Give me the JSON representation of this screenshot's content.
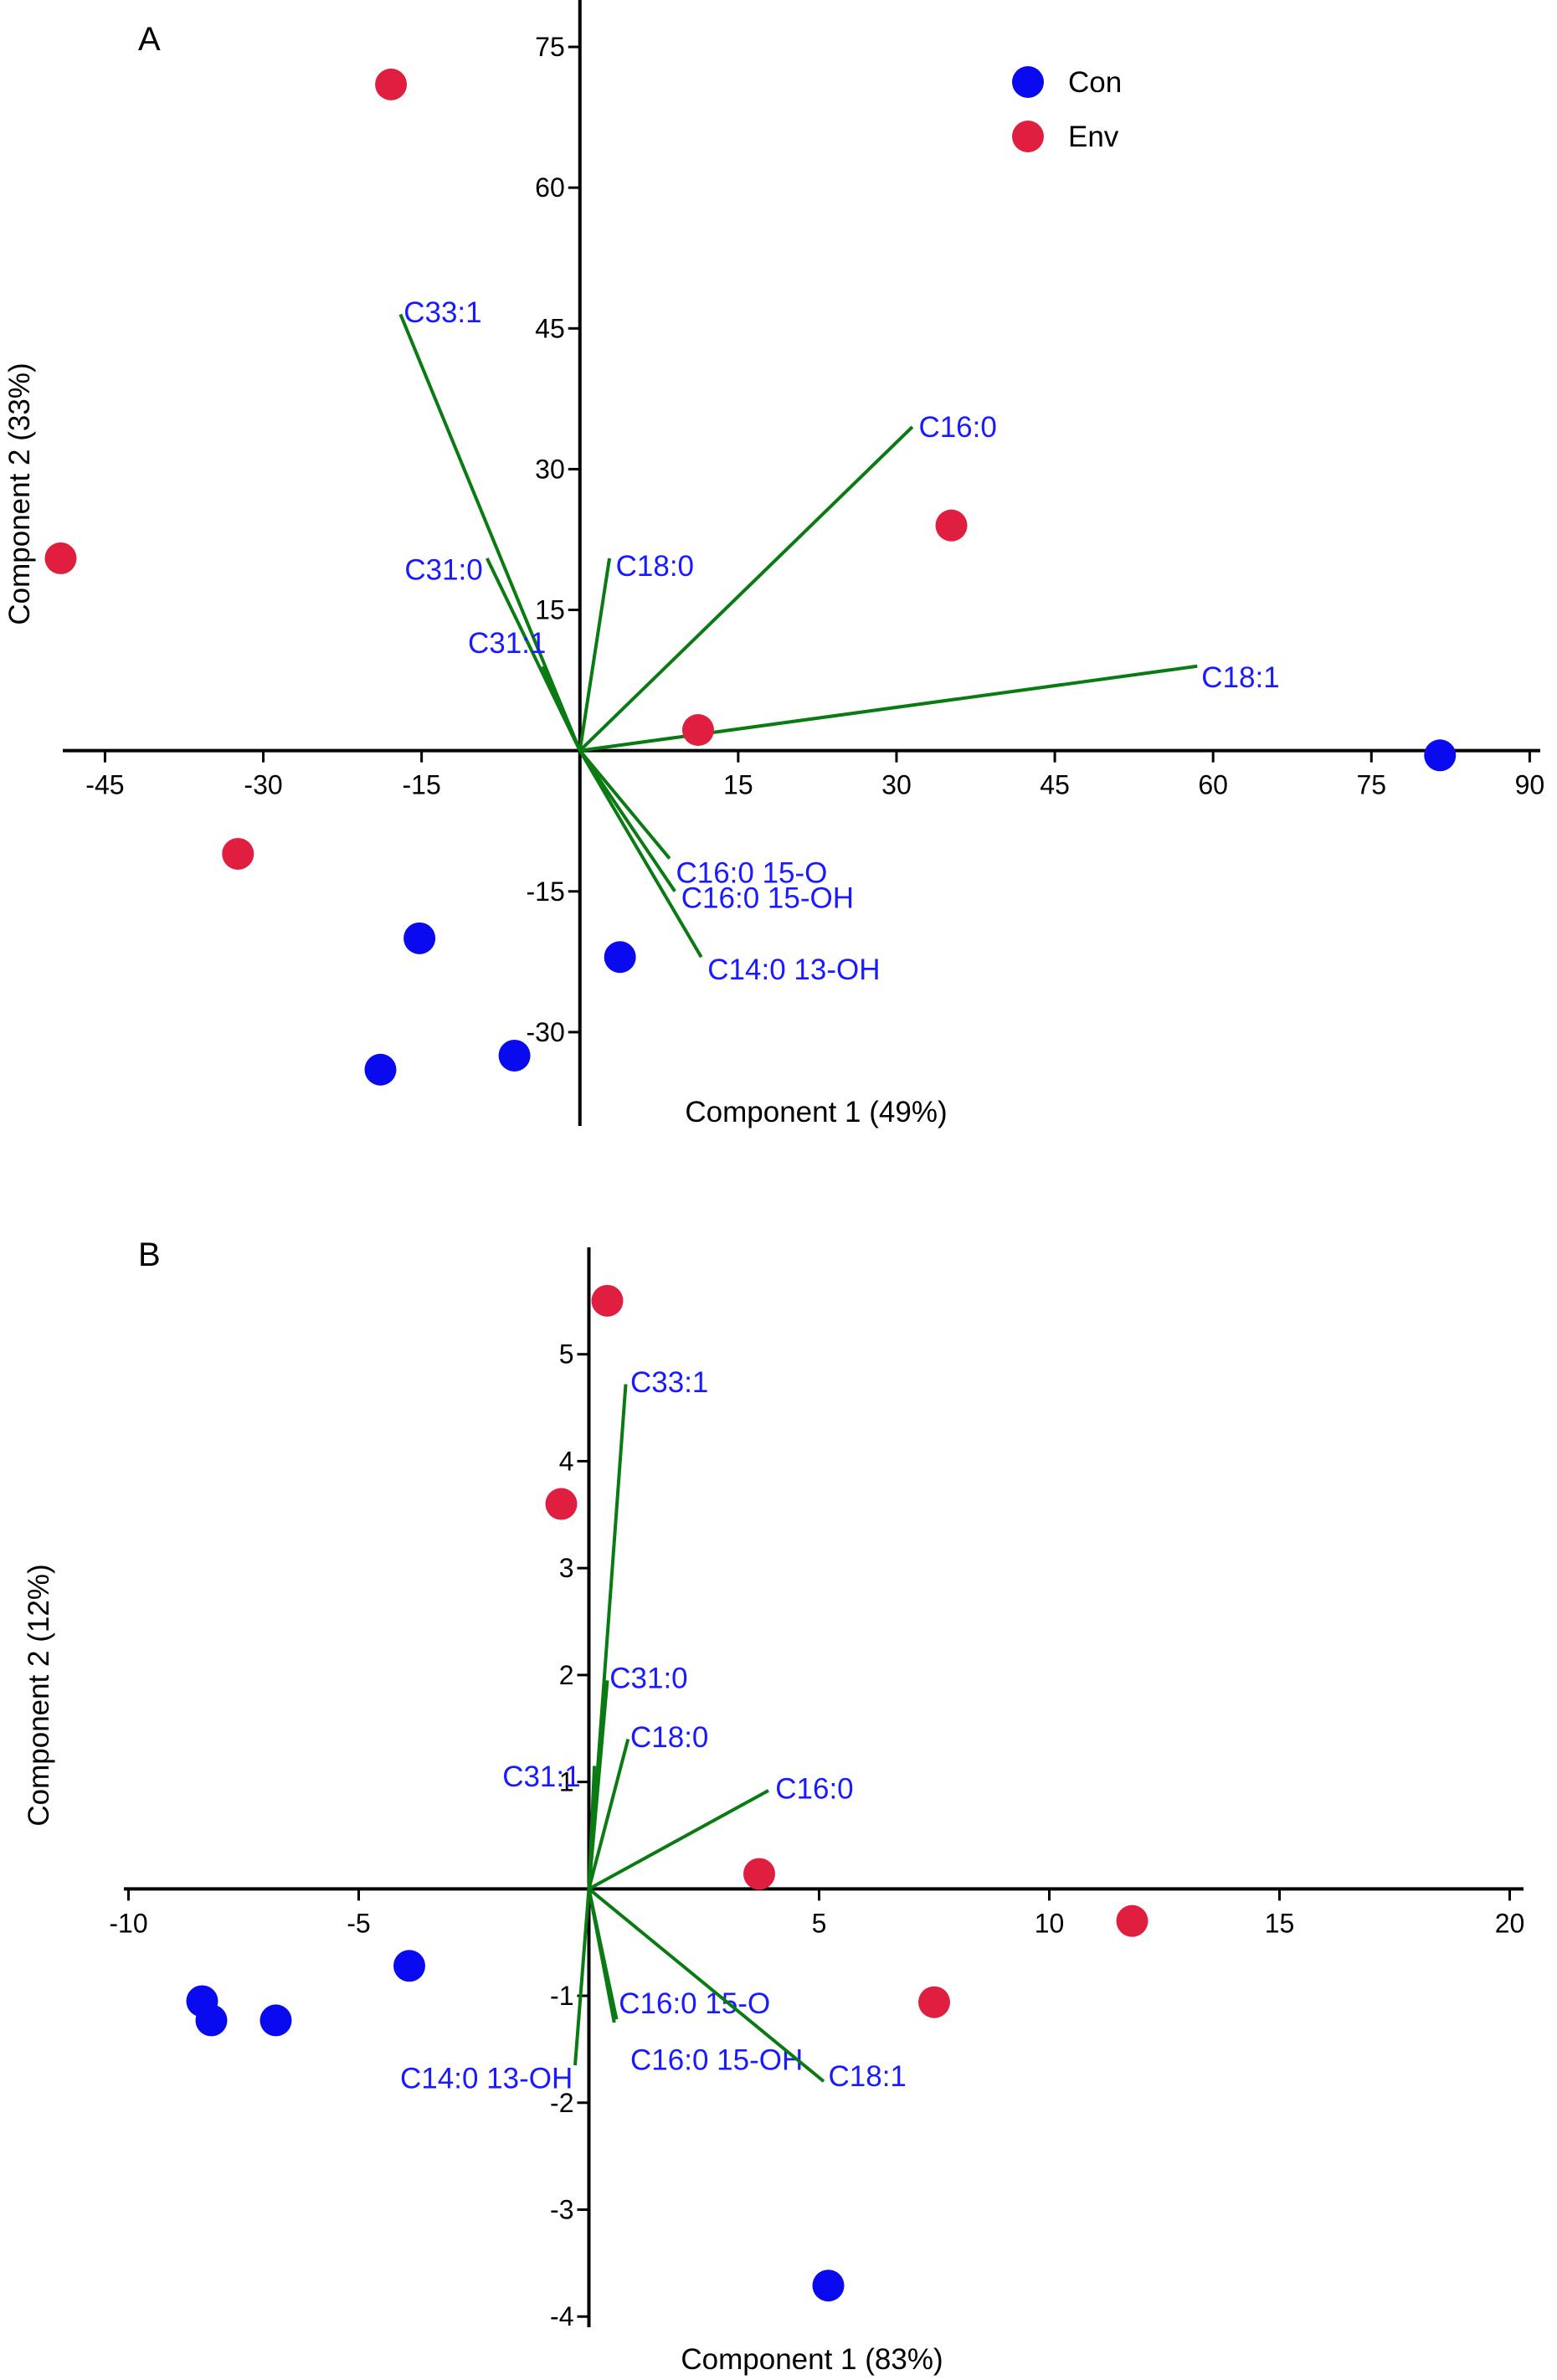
{
  "chart_data": [
    {
      "type": "scatter",
      "panel": "A",
      "xlabel": "Component 1 (49%)",
      "ylabel": "Component 2 (33%)",
      "xlim": [
        -49,
        91
      ],
      "ylim": [
        -40,
        80
      ],
      "x_ticks": [
        -45,
        -30,
        -15,
        15,
        30,
        45,
        60,
        75,
        90
      ],
      "y_ticks": [
        75,
        60,
        45,
        30,
        15,
        -15,
        -30
      ],
      "legend": {
        "position": "top-right",
        "entries": [
          {
            "name": "Con",
            "color": "#0a0af0"
          },
          {
            "name": "Env",
            "color": "#e01e40"
          }
        ]
      },
      "series": [
        {
          "name": "Con",
          "color": "#0a0af0",
          "points": [
            {
              "x": 81.5,
              "y": -0.5
            },
            {
              "x": 3.8,
              "y": -22
            },
            {
              "x": -15.2,
              "y": -20
            },
            {
              "x": -18.9,
              "y": -34
            },
            {
              "x": -6.2,
              "y": -32.5
            }
          ]
        },
        {
          "name": "Env",
          "color": "#e01e40",
          "points": [
            {
              "x": -17.9,
              "y": 71
            },
            {
              "x": -49.2,
              "y": 20.5
            },
            {
              "x": 35.2,
              "y": 24
            },
            {
              "x": 11.2,
              "y": 2.2
            },
            {
              "x": -32.4,
              "y": -11
            }
          ]
        }
      ],
      "loadings": [
        {
          "label": "C33:1",
          "x": -17,
          "y": 46.5,
          "label_anchor": "start",
          "label_dx": 0.3,
          "label_dy": 0.2
        },
        {
          "label": "C16:0",
          "x": 31.5,
          "y": 34.5,
          "label_anchor": "start",
          "label_dx": 0.6,
          "label_dy": 0
        },
        {
          "label": "C31:0",
          "x": -8.8,
          "y": 20.5,
          "label_anchor": "end",
          "label_dx": -0.4,
          "label_dy": -1.2
        },
        {
          "label": "C18:0",
          "x": 2.8,
          "y": 20.5,
          "label_anchor": "start",
          "label_dx": 0.6,
          "label_dy": -0.8
        },
        {
          "label": "C31:1",
          "x": -3.5,
          "y": 9,
          "label_anchor": "end",
          "label_dx": 0.3,
          "label_dy": 2.5
        },
        {
          "label": "C18:1",
          "x": 58.5,
          "y": 9,
          "label_anchor": "start",
          "label_dx": 0.4,
          "label_dy": -1.2
        },
        {
          "label": "C16:0 15-O",
          "x": 8.5,
          "y": -11.5,
          "label_anchor": "start",
          "label_dx": 0.6,
          "label_dy": -1.5
        },
        {
          "label": "C16:0 15-OH",
          "x": 9,
          "y": -15,
          "label_anchor": "start",
          "label_dx": 0.6,
          "label_dy": -0.7
        },
        {
          "label": "C14:0 13-OH",
          "x": 11.5,
          "y": -22,
          "label_anchor": "start",
          "label_dx": 0.6,
          "label_dy": -1.3
        }
      ]
    },
    {
      "type": "scatter",
      "panel": "B",
      "xlabel": "Component 1 (83%)",
      "ylabel": "Component 2 (12%)",
      "xlim": [
        -10.1,
        20.3
      ],
      "ylim": [
        -4.1,
        6
      ],
      "x_ticks": [
        -10,
        -5,
        5,
        10,
        15,
        20
      ],
      "y_ticks": [
        5,
        4,
        3,
        2,
        1,
        -1,
        -2,
        -3,
        -4
      ],
      "series": [
        {
          "name": "Con",
          "color": "#0a0af0",
          "points": [
            {
              "x": -8.4,
              "y": -1.05
            },
            {
              "x": -8.2,
              "y": -1.23
            },
            {
              "x": -6.8,
              "y": -1.23
            },
            {
              "x": -3.9,
              "y": -0.72
            },
            {
              "x": 5.2,
              "y": -3.71
            }
          ]
        },
        {
          "name": "Env",
          "color": "#e01e40",
          "points": [
            {
              "x": 0.4,
              "y": 5.5
            },
            {
              "x": -0.6,
              "y": 3.6
            },
            {
              "x": 3.7,
              "y": 0.14
            },
            {
              "x": 7.5,
              "y": -1.06
            },
            {
              "x": 11.8,
              "y": -0.3
            }
          ]
        }
      ],
      "loadings": [
        {
          "label": "C33:1",
          "x": 0.8,
          "y": 4.72,
          "label_anchor": "start",
          "label_dx": 0.1,
          "label_dy": 0.02
        },
        {
          "label": "C31:0",
          "x": 0.4,
          "y": 1.95,
          "label_anchor": "start",
          "label_dx": 0.05,
          "label_dy": 0.02
        },
        {
          "label": "C18:0",
          "x": 0.85,
          "y": 1.4,
          "label_anchor": "start",
          "label_dx": 0.05,
          "label_dy": 0.02
        },
        {
          "label": "C31:1",
          "x": 0.12,
          "y": 1.15,
          "label_anchor": "end",
          "label_dx": -0.3,
          "label_dy": -0.1
        },
        {
          "label": "C16:0",
          "x": 3.9,
          "y": 0.92,
          "label_anchor": "start",
          "label_dx": 0.15,
          "label_dy": 0.02
        },
        {
          "label": "C16:0 15-O",
          "x": 0.6,
          "y": -1.22,
          "label_anchor": "start",
          "label_dx": 0.05,
          "label_dy": 0.15
        },
        {
          "label": "C16:0 15-OH",
          "x": 0.55,
          "y": -1.25,
          "label_anchor": "end",
          "label_dx": 4.1,
          "label_dy": -0.35
        },
        {
          "label": "C14:0 13-OH",
          "x": -0.3,
          "y": -1.65,
          "label_anchor": "end",
          "label_dx": -0.05,
          "label_dy": -0.12
        },
        {
          "label": "C18:1",
          "x": 5.1,
          "y": -1.8,
          "label_anchor": "start",
          "label_dx": 0.1,
          "label_dy": 0.05
        }
      ]
    }
  ]
}
